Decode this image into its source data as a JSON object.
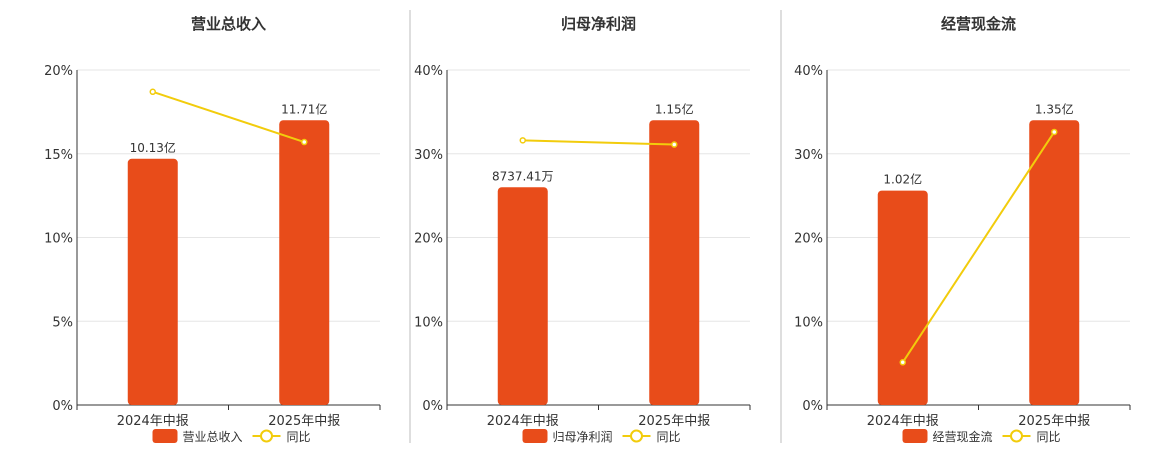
{
  "colors": {
    "bar": "#E84C1A",
    "line": "#F2CC0C",
    "grid": "#E6E6E6",
    "axis": "#333333",
    "separator": "#BDBDBD",
    "text": "#333333"
  },
  "chart_data": [
    {
      "type": "bar",
      "title": "营业总收入",
      "categories": [
        "2024年中报",
        "2025年中报"
      ],
      "ylim": [
        0,
        20
      ],
      "yticks": [
        "0%",
        "5%",
        "10%",
        "15%",
        "20%"
      ],
      "series": [
        {
          "name": "营业总收入",
          "type": "bar",
          "values": [
            14.7,
            17.0
          ],
          "labels": [
            "10.13亿",
            "11.71亿"
          ]
        },
        {
          "name": "同比",
          "type": "line",
          "values": [
            18.7,
            15.7
          ]
        }
      ],
      "legend": "bottom-center",
      "grid": true
    },
    {
      "type": "bar",
      "title": "归母净利润",
      "categories": [
        "2024年中报",
        "2025年中报"
      ],
      "ylim": [
        0,
        40
      ],
      "yticks": [
        "0%",
        "10%",
        "20%",
        "30%",
        "40%"
      ],
      "series": [
        {
          "name": "归母净利润",
          "type": "bar",
          "values": [
            26.0,
            34.0
          ],
          "labels": [
            "8737.41万",
            "1.15亿"
          ]
        },
        {
          "name": "同比",
          "type": "line",
          "values": [
            31.6,
            31.1
          ]
        }
      ],
      "legend": "bottom-center",
      "grid": true
    },
    {
      "type": "bar",
      "title": "经营现金流",
      "categories": [
        "2024年中报",
        "2025年中报"
      ],
      "ylim": [
        0,
        40
      ],
      "yticks": [
        "0%",
        "10%",
        "20%",
        "30%",
        "40%"
      ],
      "series": [
        {
          "name": "经营现金流",
          "type": "bar",
          "values": [
            25.6,
            34.0
          ],
          "labels": [
            "1.02亿",
            "1.35亿"
          ]
        },
        {
          "name": "同比",
          "type": "line",
          "values": [
            5.1,
            32.6
          ]
        }
      ],
      "legend": "bottom-center",
      "grid": true
    }
  ]
}
